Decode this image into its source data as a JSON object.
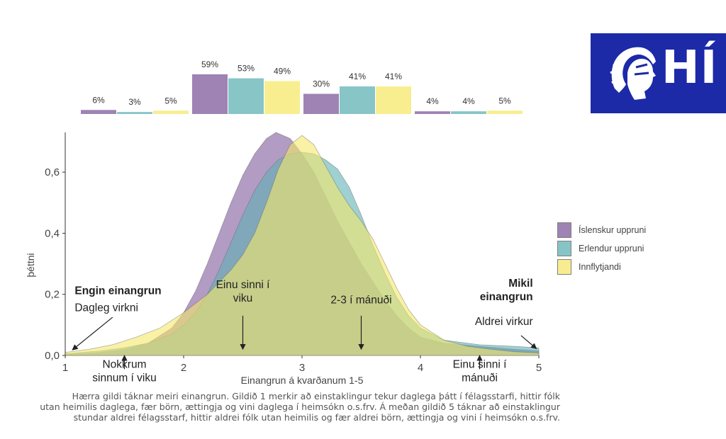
{
  "chart_data": {
    "type": "area",
    "xlabel": "Einangrun á kvarðanum 1-5",
    "ylabel": "þéttni",
    "xlim": [
      1,
      5
    ],
    "ylim": [
      0,
      0.73
    ],
    "xticks": [
      1,
      2,
      3,
      4,
      5
    ],
    "yticks": [
      0.0,
      0.2,
      0.4,
      0.6
    ],
    "ytick_labels": [
      "0,0",
      "0,2",
      "0,4",
      "0,6"
    ],
    "series": [
      {
        "name": "Íslenskur uppruni",
        "color": "#7e5a9b",
        "points": [
          [
            1,
            0.003
          ],
          [
            1.3,
            0.01
          ],
          [
            1.5,
            0.02
          ],
          [
            1.7,
            0.04
          ],
          [
            1.9,
            0.09
          ],
          [
            2.0,
            0.14
          ],
          [
            2.1,
            0.21
          ],
          [
            2.2,
            0.3
          ],
          [
            2.3,
            0.4
          ],
          [
            2.4,
            0.5
          ],
          [
            2.5,
            0.59
          ],
          [
            2.6,
            0.66
          ],
          [
            2.7,
            0.71
          ],
          [
            2.78,
            0.73
          ],
          [
            2.9,
            0.71
          ],
          [
            3.0,
            0.66
          ],
          [
            3.1,
            0.6
          ],
          [
            3.2,
            0.52
          ],
          [
            3.3,
            0.44
          ],
          [
            3.4,
            0.37
          ],
          [
            3.5,
            0.3
          ],
          [
            3.6,
            0.24
          ],
          [
            3.7,
            0.18
          ],
          [
            3.8,
            0.13
          ],
          [
            3.9,
            0.09
          ],
          [
            4.0,
            0.06
          ],
          [
            4.2,
            0.04
          ],
          [
            4.5,
            0.03
          ],
          [
            4.8,
            0.02
          ],
          [
            5.0,
            0.015
          ]
        ]
      },
      {
        "name": "Erlendur uppruni",
        "color": "#5fb1b4",
        "points": [
          [
            1,
            0.005
          ],
          [
            1.3,
            0.015
          ],
          [
            1.5,
            0.025
          ],
          [
            1.7,
            0.04
          ],
          [
            1.9,
            0.07
          ],
          [
            2.0,
            0.1
          ],
          [
            2.1,
            0.14
          ],
          [
            2.2,
            0.2
          ],
          [
            2.3,
            0.28
          ],
          [
            2.4,
            0.37
          ],
          [
            2.5,
            0.46
          ],
          [
            2.6,
            0.54
          ],
          [
            2.7,
            0.6
          ],
          [
            2.8,
            0.64
          ],
          [
            2.9,
            0.66
          ],
          [
            3.0,
            0.665
          ],
          [
            3.1,
            0.66
          ],
          [
            3.2,
            0.64
          ],
          [
            3.3,
            0.61
          ],
          [
            3.4,
            0.55
          ],
          [
            3.5,
            0.46
          ],
          [
            3.6,
            0.36
          ],
          [
            3.7,
            0.27
          ],
          [
            3.8,
            0.19
          ],
          [
            3.9,
            0.13
          ],
          [
            4.0,
            0.09
          ],
          [
            4.2,
            0.05
          ],
          [
            4.5,
            0.035
          ],
          [
            4.8,
            0.03
          ],
          [
            5.0,
            0.025
          ]
        ]
      },
      {
        "name": "Innflytjandi",
        "color": "#f5e86b",
        "points": [
          [
            1,
            0.01
          ],
          [
            1.2,
            0.02
          ],
          [
            1.4,
            0.035
          ],
          [
            1.6,
            0.06
          ],
          [
            1.8,
            0.09
          ],
          [
            2.0,
            0.14
          ],
          [
            2.2,
            0.2
          ],
          [
            2.4,
            0.28
          ],
          [
            2.5,
            0.33
          ],
          [
            2.6,
            0.4
          ],
          [
            2.7,
            0.5
          ],
          [
            2.8,
            0.61
          ],
          [
            2.9,
            0.69
          ],
          [
            3.0,
            0.72
          ],
          [
            3.1,
            0.69
          ],
          [
            3.2,
            0.62
          ],
          [
            3.3,
            0.55
          ],
          [
            3.4,
            0.49
          ],
          [
            3.5,
            0.44
          ],
          [
            3.6,
            0.38
          ],
          [
            3.7,
            0.3
          ],
          [
            3.8,
            0.22
          ],
          [
            3.9,
            0.15
          ],
          [
            4.0,
            0.1
          ],
          [
            4.2,
            0.05
          ],
          [
            4.4,
            0.03
          ],
          [
            4.6,
            0.02
          ],
          [
            4.8,
            0.012
          ],
          [
            5.0,
            0.008
          ]
        ]
      }
    ],
    "bar_groups": [
      {
        "category": "1",
        "values": [
          6,
          3,
          5
        ],
        "labels": [
          "6%",
          "3%",
          "5%"
        ]
      },
      {
        "category": "2",
        "values": [
          59,
          53,
          49
        ],
        "labels": [
          "59%",
          "53%",
          "49%"
        ]
      },
      {
        "category": "3",
        "values": [
          30,
          41,
          41
        ],
        "labels": [
          "30%",
          "41%",
          "41%"
        ]
      },
      {
        "category": "4",
        "values": [
          4,
          4,
          5
        ],
        "labels": [
          "4%",
          "4%",
          "5%"
        ]
      }
    ],
    "bar_max": 60,
    "annotations": [
      {
        "id": "engin",
        "lines": [
          "Engin einangrun"
        ],
        "bold": true,
        "x": 1.08,
        "y": 0.2
      },
      {
        "id": "dagleg",
        "lines": [
          "Dagleg virkni"
        ],
        "bold": false,
        "x": 1.08,
        "y": 0.145
      },
      {
        "id": "vika",
        "lines": [
          "Einu sinni í",
          "viku"
        ],
        "bold": false,
        "x": 2.5,
        "y": 0.22
      },
      {
        "id": "manudi23",
        "lines": [
          "2-3 í mánuði"
        ],
        "bold": false,
        "x": 3.5,
        "y": 0.17
      },
      {
        "id": "mikil",
        "lines": [
          "Mikil",
          "einangrun"
        ],
        "bold": true,
        "x": 4.95,
        "y": 0.225
      },
      {
        "id": "aldrei",
        "lines": [
          "Aldrei virkur"
        ],
        "bold": false,
        "x": 4.95,
        "y": 0.1
      },
      {
        "id": "nokkrum",
        "lines": [
          "Nokkrum",
          "sinnum í viku"
        ],
        "bold": false,
        "x": 1.5,
        "y": -0.04
      },
      {
        "id": "manudi1",
        "lines": [
          "Einu sinni í",
          "mánuði"
        ],
        "bold": false,
        "x": 4.5,
        "y": -0.04
      }
    ],
    "arrows": [
      {
        "from": [
          1.4,
          0.125
        ],
        "to": [
          1.06,
          0.018
        ]
      },
      {
        "from": [
          2.5,
          0.13
        ],
        "to": [
          2.5,
          0.02
        ]
      },
      {
        "from": [
          3.5,
          0.13
        ],
        "to": [
          3.5,
          0.02
        ]
      },
      {
        "from": [
          4.85,
          0.065
        ],
        "to": [
          4.98,
          0.022
        ]
      },
      {
        "from": [
          1.5,
          -0.045
        ],
        "to": [
          1.5,
          -0.0
        ]
      },
      {
        "from": [
          4.5,
          -0.045
        ],
        "to": [
          4.5,
          -0.0
        ]
      }
    ]
  },
  "legend": {
    "items": [
      {
        "label": "Íslenskur uppruni",
        "color": "#7e5a9b"
      },
      {
        "label": "Erlendur uppruni",
        "color": "#5fb1b4"
      },
      {
        "label": "Innflytjandi",
        "color": "#f5e86b"
      }
    ]
  },
  "caption": {
    "lines": [
      "Hærra gildi táknar meiri einangrun. Gildið 1 merkir að einstaklingur tekur daglega þátt í félagsstarfi, hittir fólk",
      "utan heimilis daglega, fær börn, ættingja og vini daglega í heimsókn o.s.frv. Á meðan gildið 5 táknar að einstaklingur",
      "stundar aldrei félagsstarf, hittir aldrei fólk utan heimilis og fær aldrei börn, ættingja og vini í heimsókn o.s.frv."
    ]
  },
  "logo": {
    "text": "HÍ",
    "icon": "university-head-logo-icon",
    "color": "#1c2aa8"
  }
}
